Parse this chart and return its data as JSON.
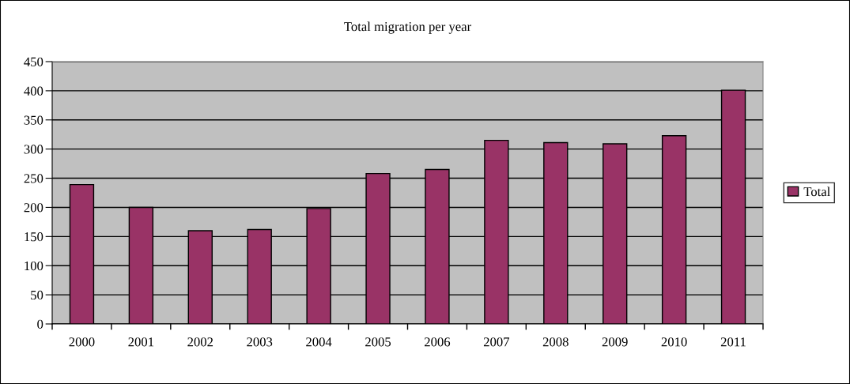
{
  "chart_data": {
    "type": "bar",
    "title": "Total migration per year",
    "categories": [
      "2000",
      "2001",
      "2002",
      "2003",
      "2004",
      "2005",
      "2006",
      "2007",
      "2008",
      "2009",
      "2010",
      "2011"
    ],
    "series": [
      {
        "name": "Total",
        "color": "#993366",
        "values": [
          239,
          200,
          160,
          162,
          198,
          258,
          265,
          315,
          311,
          309,
          323,
          401
        ]
      }
    ],
    "ylim": [
      0,
      450
    ],
    "yticks": [
      0,
      50,
      100,
      150,
      200,
      250,
      300,
      350,
      400,
      450
    ],
    "grid": "y",
    "legend": "right"
  }
}
